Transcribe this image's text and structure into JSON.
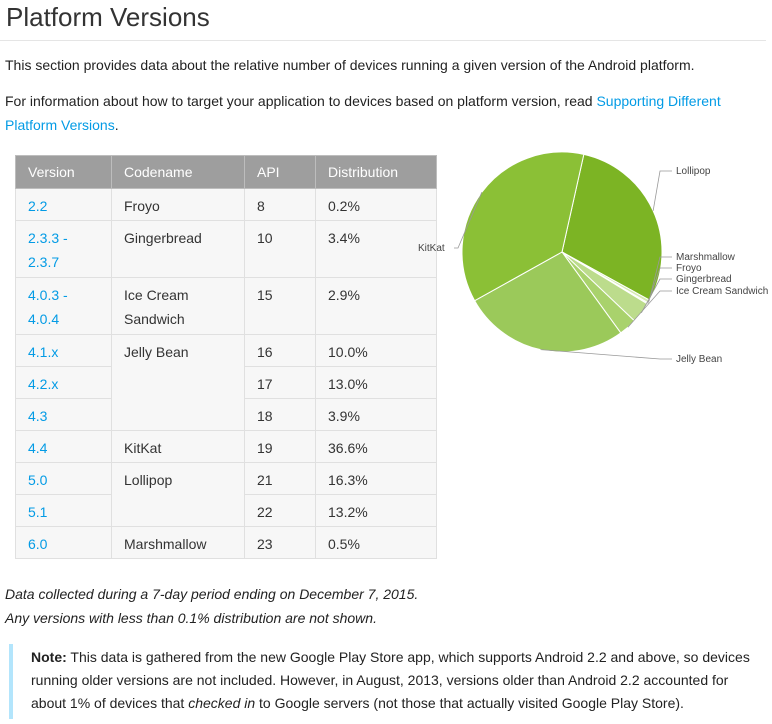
{
  "page": {
    "title": "Platform Versions",
    "intro": "This section provides data about the relative number of devices running a given version of the Android platform.",
    "info_text": "For information about how to target your application to devices based on platform version, read ",
    "info_link": "Supporting Different Platform Versions",
    "info_end": "."
  },
  "table": {
    "headers": [
      "Version",
      "Codename",
      "API",
      "Distribution"
    ],
    "rows": [
      {
        "version": "2.2",
        "codename": "Froyo",
        "api": "8",
        "dist": "0.2%"
      },
      {
        "version": "2.3.3 -",
        "version2": "2.3.7",
        "codename": "Gingerbread",
        "api": "10",
        "dist": "3.4%"
      },
      {
        "version": "4.0.3 -",
        "version2": "4.0.4",
        "codename": "Ice Cream",
        "codename2": "Sandwich",
        "api": "15",
        "dist": "2.9%"
      },
      {
        "version": "4.1.x",
        "codename": "Jelly Bean",
        "api": "16",
        "dist": "10.0%"
      },
      {
        "version": "4.2.x",
        "api": "17",
        "dist": "13.0%"
      },
      {
        "version": "4.3",
        "api": "18",
        "dist": "3.9%"
      },
      {
        "version": "4.4",
        "codename": "KitKat",
        "api": "19",
        "dist": "36.6%"
      },
      {
        "version": "5.0",
        "codename": "Lollipop",
        "api": "21",
        "dist": "16.3%"
      },
      {
        "version": "5.1",
        "api": "22",
        "dist": "13.2%"
      },
      {
        "version": "6.0",
        "codename": "Marshmallow",
        "api": "23",
        "dist": "0.5%"
      }
    ]
  },
  "notes": {
    "line1": "Data collected during a 7-day period ending on December 7, 2015.",
    "line2": "Any versions with less than 0.1% distribution are not shown."
  },
  "note_box": {
    "label": "Note:",
    "text_a": " This data is gathered from the new Google Play Store app, which supports Android 2.2 and above, so devices running older versions are not included. However, in August, 2013, versions older than Android 2.2 accounted for about 1% of devices that ",
    "text_em": "checked in",
    "text_b": " to Google servers (not those that actually visited Google Play Store)."
  },
  "colors": {
    "link": "#039be5",
    "header_bg": "#9e9e9e",
    "note_border": "#b3e5fc"
  },
  "chart_data": {
    "type": "pie",
    "slices": [
      {
        "label": "Lollipop",
        "value": 29.5,
        "color": "#7cb424"
      },
      {
        "label": "Marshmallow",
        "value": 0.5,
        "color": "#d6eab4"
      },
      {
        "label": "Froyo",
        "value": 0.2,
        "color": "#e4f1d0"
      },
      {
        "label": "Gingerbread",
        "value": 3.4,
        "color": "#bcdc8c"
      },
      {
        "label": "Ice Cream Sandwich",
        "value": 2.9,
        "color": "#a9d26c"
      },
      {
        "label": "Jelly Bean",
        "value": 26.9,
        "color": "#9bc95a"
      },
      {
        "label": "KitKat",
        "value": 36.6,
        "color": "#8bc036"
      }
    ]
  }
}
